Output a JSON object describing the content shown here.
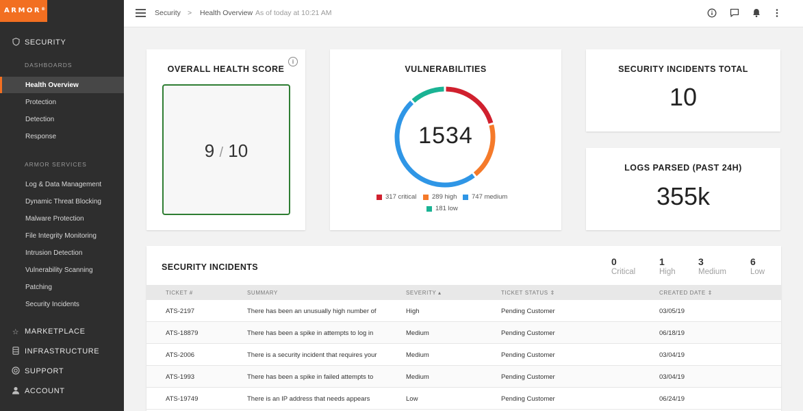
{
  "brand": {
    "logo_text": "ARMOR",
    "accent": "#f26f21"
  },
  "sidebar": {
    "sections": [
      {
        "label": "SECURITY",
        "icon": "shield-icon"
      },
      {
        "label": "MARKETPLACE",
        "icon": "star-icon"
      },
      {
        "label": "INFRASTRUCTURE",
        "icon": "server-icon"
      },
      {
        "label": "SUPPORT",
        "icon": "lifebuoy-icon"
      },
      {
        "label": "ACCOUNT",
        "icon": "user-icon"
      }
    ],
    "dashboards_heading": "DASHBOARDS",
    "dashboards": [
      "Health Overview",
      "Protection",
      "Detection",
      "Response"
    ],
    "services_heading": "ARMOR SERVICES",
    "services": [
      "Log & Data Management",
      "Dynamic Threat Blocking",
      "Malware Protection",
      "File Integrity Monitoring",
      "Intrusion Detection",
      "Vulnerability Scanning",
      "Patching",
      "Security Incidents"
    ]
  },
  "topbar": {
    "crumb_root": "Security",
    "separator": ">",
    "crumb_current": "Health Overview",
    "timestamp": "As of today at 10:21 AM",
    "icons": [
      "info-icon",
      "chat-icon",
      "bell-icon",
      "more-vertical-icon"
    ]
  },
  "health": {
    "title": "OVERALL HEALTH SCORE",
    "score": "9",
    "separator": "/",
    "max": "10",
    "border_color": "#2e7d32"
  },
  "vulnerabilities": {
    "title": "VULNERABILITIES",
    "total": "1534",
    "segments": [
      {
        "label": "317 critical",
        "value": 317,
        "color": "#d0202e"
      },
      {
        "label": "289 high",
        "value": 289,
        "color": "#f57a2a"
      },
      {
        "label": "747 medium",
        "value": 747,
        "color": "#2f96e6"
      },
      {
        "label": "181 low",
        "value": 181,
        "color": "#1ab394"
      }
    ]
  },
  "incidents_total": {
    "title": "SECURITY INCIDENTS TOTAL",
    "value": "10"
  },
  "logs_parsed": {
    "title": "LOGS PARSED (PAST 24H)",
    "value": "355k"
  },
  "incidents": {
    "title": "SECURITY INCIDENTS",
    "stats": [
      {
        "num": "0",
        "label": "Critical"
      },
      {
        "num": "1",
        "label": "High"
      },
      {
        "num": "3",
        "label": "Medium"
      },
      {
        "num": "6",
        "label": "Low"
      }
    ],
    "columns": [
      "TICKET #",
      "SUMMARY",
      "SEVERITY ▴",
      "TICKET STATUS ⇕",
      "CREATED DATE ⇕"
    ],
    "rows": [
      [
        "ATS-2197",
        "There has been an unusually high number of",
        "High",
        "Pending Customer",
        "03/05/19"
      ],
      [
        "ATS-18879",
        "There has been a spike in attempts to log in",
        "Medium",
        "Pending Customer",
        "06/18/19"
      ],
      [
        "ATS-2006",
        "There is a security incident that requires your",
        "Medium",
        "Pending Customer",
        "03/04/19"
      ],
      [
        "ATS-1993",
        "There has been a spike in failed attempts to",
        "Medium",
        "Pending Customer",
        "03/04/19"
      ],
      [
        "ATS-19749",
        "There is an IP address that needs appears",
        "Low",
        "Pending Customer",
        "06/24/19"
      ]
    ]
  }
}
